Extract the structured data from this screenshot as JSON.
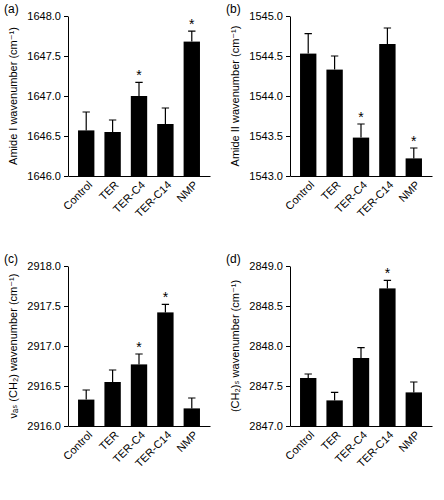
{
  "chart_data": [
    {
      "type": "bar",
      "title": "(a)",
      "y_label": "Amide I wavenumber (cm⁻¹)",
      "categories": [
        "Control",
        "TER",
        "TER-C4",
        "TER-C14",
        "NMP"
      ],
      "values": [
        1646.57,
        1646.55,
        1647.0,
        1646.65,
        1647.68
      ],
      "errors": [
        0.23,
        0.15,
        0.17,
        0.2,
        0.13
      ],
      "significance": [
        null,
        null,
        "*",
        null,
        "*"
      ],
      "color": "#000000",
      "ylim": [
        1646,
        1648
      ],
      "yticks": [
        {
          "value": 1646,
          "label": "1646.0"
        },
        1646.5,
        {
          "value": 1647,
          "label": "1647.0"
        },
        1647.5,
        {
          "value": 1648,
          "label": "1648.0"
        }
      ]
    },
    {
      "type": "bar",
      "title": "(b)",
      "y_label": "Amide II wavenumber (cm⁻¹)",
      "categories": [
        "Control",
        "TER",
        "TER-C4",
        "TER-C14",
        "NMP"
      ],
      "values": [
        1544.53,
        1544.33,
        1543.48,
        1544.65,
        1543.22
      ],
      "errors": [
        0.25,
        0.17,
        0.17,
        0.2,
        0.13
      ],
      "significance": [
        null,
        null,
        "*",
        null,
        "*"
      ],
      "color": "#000000",
      "ylim": [
        1543,
        1545
      ],
      "yticks": [
        {
          "value": 1543,
          "label": "1543.0"
        },
        1543.5,
        {
          "value": 1544,
          "label": "1544.0"
        },
        1544.5,
        {
          "value": 1545,
          "label": "1545.0"
        }
      ]
    },
    {
      "type": "bar",
      "title": "(c)",
      "y_label": "νₐₛ (CH₂) wavenumber (cm⁻¹)",
      "categories": [
        "Control",
        "TER",
        "TER-C4",
        "TER-C14",
        "NMP"
      ],
      "values": [
        2916.33,
        2916.55,
        2916.77,
        2917.42,
        2916.22
      ],
      "errors": [
        0.12,
        0.15,
        0.13,
        0.1,
        0.13
      ],
      "significance": [
        null,
        null,
        "*",
        "*",
        null
      ],
      "color": "#000000",
      "ylim": [
        2916,
        2918
      ],
      "yticks": [
        {
          "value": 2916,
          "label": "2916.0"
        },
        2916.5,
        {
          "value": 2917,
          "label": "2917.0"
        },
        2917.5,
        {
          "value": 2918,
          "label": "2918.0"
        }
      ]
    },
    {
      "type": "bar",
      "title": "(d)",
      "y_label": "(CH₂)ₛ wavenumber (cm⁻¹)",
      "categories": [
        "Control",
        "TER",
        "TER-C4",
        "TER-C14",
        "NMP"
      ],
      "values": [
        2847.6,
        2847.32,
        2847.85,
        2848.72,
        2847.42
      ],
      "errors": [
        0.05,
        0.1,
        0.13,
        0.1,
        0.13
      ],
      "significance": [
        null,
        null,
        null,
        "*",
        null
      ],
      "color": "#000000",
      "ylim": [
        2847,
        2849
      ],
      "yticks": [
        {
          "value": 2847,
          "label": "2847.0"
        },
        2847.5,
        {
          "value": 2848,
          "label": "2848.0"
        },
        2848.5,
        {
          "value": 2849,
          "label": "2849.0"
        }
      ]
    }
  ]
}
